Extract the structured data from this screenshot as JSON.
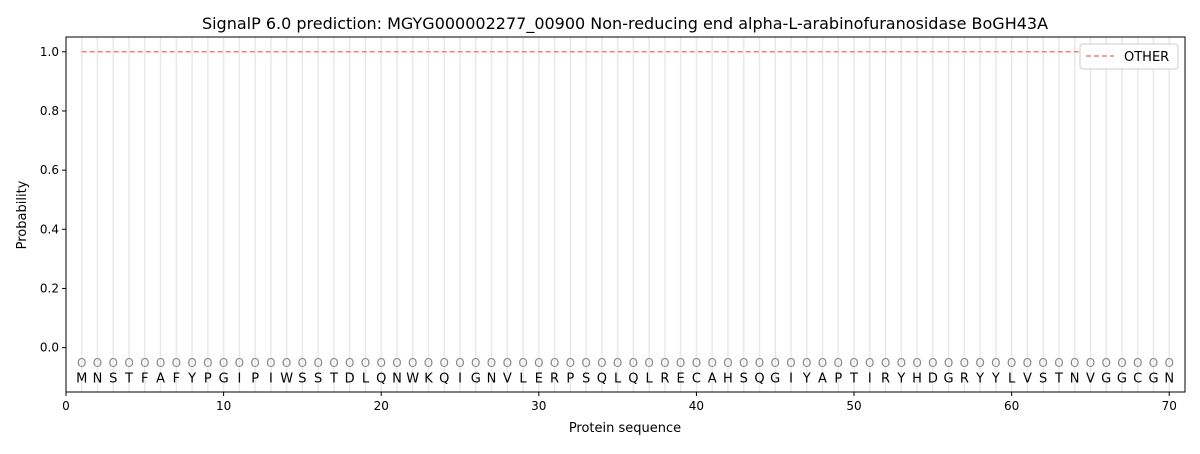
{
  "chart_data": {
    "type": "line",
    "title": "SignalP 6.0 prediction: MGYG000002277_00900 Non-reducing end alpha-L-arabinofuranosidase BoGH43A",
    "xlabel": "Protein sequence",
    "ylabel": "Probability",
    "xlim": [
      0,
      71
    ],
    "ylim": [
      -0.15,
      1.05
    ],
    "xticks": [
      0,
      10,
      20,
      30,
      40,
      50,
      60,
      70
    ],
    "yticks": [
      0.0,
      0.2,
      0.4,
      0.6,
      0.8,
      1.0
    ],
    "ytick_labels": [
      "0.0",
      "0.2",
      "0.4",
      "0.6",
      "0.8",
      "1.0"
    ],
    "legend_position": "top-right",
    "grid": "vertical lines at each residue",
    "sequence": [
      "M",
      "N",
      "S",
      "T",
      "F",
      "A",
      "F",
      "Y",
      "P",
      "G",
      "I",
      "P",
      "I",
      "W",
      "S",
      "S",
      "T",
      "D",
      "L",
      "Q",
      "N",
      "W",
      "K",
      "Q",
      "I",
      "G",
      "N",
      "V",
      "L",
      "E",
      "R",
      "P",
      "S",
      "Q",
      "L",
      "Q",
      "L",
      "R",
      "E",
      "C",
      "A",
      "H",
      "S",
      "Q",
      "G",
      "I",
      "Y",
      "A",
      "P",
      "T",
      "I",
      "R",
      "Y",
      "H",
      "D",
      "G",
      "R",
      "Y",
      "Y",
      "L",
      "V",
      "S",
      "T",
      "N",
      "V",
      "G",
      "G",
      "C",
      "G",
      "N"
    ],
    "region_label": "O",
    "series": [
      {
        "name": "OTHER",
        "color": "#f08080",
        "style": "dashed",
        "x_start": 1,
        "x_end": 70,
        "value": 1.0
      }
    ]
  }
}
